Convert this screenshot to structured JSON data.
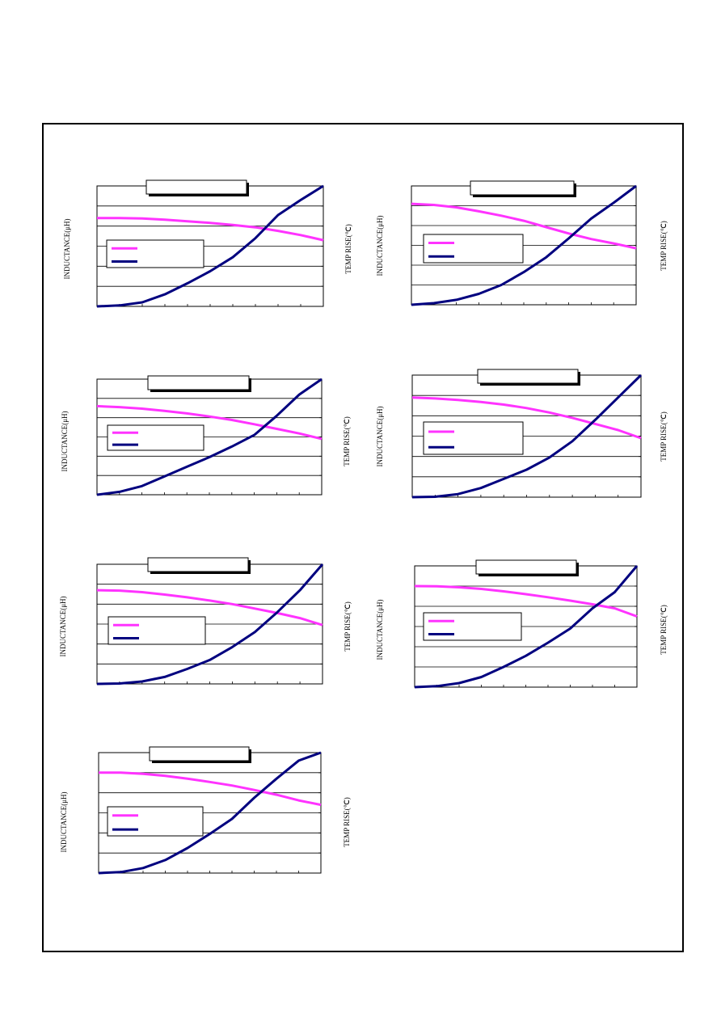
{
  "page": {
    "background": "#ffffff",
    "border_color": "#000000"
  },
  "colors": {
    "inductance": "#ff33ff",
    "temp_rise": "#00007f",
    "grid": "#000000"
  },
  "labels": {
    "left_axis": "INDUCTANCE(μH)",
    "right_axis": "TEMP RISE(℃)"
  },
  "chart_data": [
    {
      "type": "line",
      "title": "",
      "xlabel": "",
      "ylabel": "INDUCTANCE(μH)",
      "y2label": "TEMP RISE(℃)",
      "grid": true,
      "legend": "left-middle",
      "ylim": [
        0,
        6
      ],
      "xlim": [
        0,
        10
      ],
      "series": [
        {
          "x": [
            0,
            1,
            2,
            3,
            4,
            5,
            6,
            7,
            8,
            9,
            10
          ],
          "values": [
            4.4,
            4.4,
            4.38,
            4.32,
            4.24,
            4.16,
            4.06,
            3.94,
            3.76,
            3.55,
            3.3
          ]
        },
        {
          "x": [
            0,
            1,
            2,
            3,
            4,
            5,
            6,
            7,
            8,
            9,
            10
          ],
          "values": [
            0,
            0.05,
            0.2,
            0.6,
            1.15,
            1.75,
            2.45,
            3.4,
            4.55,
            5.3,
            6
          ]
        }
      ]
    },
    {
      "type": "line",
      "title": "",
      "xlabel": "",
      "ylabel": "INDUCTANCE(μH)",
      "y2label": "TEMP RISE(℃)",
      "grid": true,
      "legend": "left-middle",
      "ylim": [
        0,
        6
      ],
      "xlim": [
        0,
        10
      ],
      "series": [
        {
          "x": [
            0,
            1,
            2,
            3,
            4,
            5,
            6,
            7,
            8,
            9,
            10
          ],
          "values": [
            5.1,
            5.04,
            4.92,
            4.72,
            4.5,
            4.24,
            3.92,
            3.6,
            3.32,
            3.1,
            2.85
          ]
        },
        {
          "x": [
            0,
            1,
            2,
            3,
            4,
            5,
            6,
            7,
            8,
            9,
            10
          ],
          "values": [
            0,
            0.08,
            0.25,
            0.55,
            1.0,
            1.65,
            2.4,
            3.35,
            4.35,
            5.15,
            6
          ]
        }
      ]
    },
    {
      "type": "line",
      "title": "",
      "xlabel": "",
      "ylabel": "INDUCTANCE(μH)",
      "y2label": "TEMP RISE(℃)",
      "grid": true,
      "legend": "left-middle",
      "ylim": [
        0,
        6
      ],
      "xlim": [
        0,
        10
      ],
      "series": [
        {
          "x": [
            0,
            1,
            2,
            3,
            4,
            5,
            6,
            7,
            8,
            9,
            10
          ],
          "values": [
            4.6,
            4.55,
            4.47,
            4.35,
            4.22,
            4.06,
            3.88,
            3.66,
            3.42,
            3.18,
            2.9
          ]
        },
        {
          "x": [
            0,
            1,
            2,
            3,
            4,
            5,
            6,
            7,
            8,
            9,
            10
          ],
          "values": [
            0,
            0.15,
            0.45,
            0.95,
            1.45,
            1.95,
            2.5,
            3.1,
            4.1,
            5.2,
            6
          ]
        }
      ]
    },
    {
      "type": "line",
      "title": "",
      "xlabel": "",
      "ylabel": "INDUCTANCE(μH)",
      "y2label": "TEMP RISE(℃)",
      "grid": true,
      "legend": "left-middle",
      "ylim": [
        0,
        6
      ],
      "xlim": [
        0,
        10
      ],
      "series": [
        {
          "x": [
            0,
            1,
            2,
            3,
            4,
            5,
            6,
            7,
            8,
            9,
            10
          ],
          "values": [
            4.9,
            4.85,
            4.78,
            4.68,
            4.55,
            4.38,
            4.16,
            3.9,
            3.6,
            3.3,
            2.9
          ]
        },
        {
          "x": [
            0,
            1,
            2,
            3,
            4,
            5,
            6,
            7,
            8,
            9,
            10
          ],
          "values": [
            0,
            0.02,
            0.15,
            0.45,
            0.9,
            1.35,
            1.95,
            2.75,
            3.8,
            4.9,
            6
          ]
        }
      ]
    },
    {
      "type": "line",
      "title": "",
      "xlabel": "",
      "ylabel": "INDUCTANCE(μH)",
      "y2label": "TEMP RISE(℃)",
      "grid": true,
      "legend": "left-middle",
      "ylim": [
        0,
        6
      ],
      "xlim": [
        0,
        10
      ],
      "series": [
        {
          "x": [
            0,
            1,
            2,
            3,
            4,
            5,
            6,
            7,
            8,
            9,
            10
          ],
          "values": [
            4.7,
            4.68,
            4.6,
            4.48,
            4.34,
            4.18,
            4.0,
            3.78,
            3.55,
            3.3,
            2.95
          ]
        },
        {
          "x": [
            0,
            1,
            2,
            3,
            4,
            5,
            6,
            7,
            8,
            9,
            10
          ],
          "values": [
            0,
            0.02,
            0.12,
            0.35,
            0.75,
            1.2,
            1.85,
            2.6,
            3.6,
            4.7,
            6
          ]
        }
      ]
    },
    {
      "type": "line",
      "title": "",
      "xlabel": "",
      "ylabel": "INDUCTANCE(μH)",
      "y2label": "TEMP RISE(℃)",
      "grid": true,
      "legend": "left-middle",
      "ylim": [
        0,
        6
      ],
      "xlim": [
        0,
        10
      ],
      "series": [
        {
          "x": [
            0,
            1,
            2,
            3,
            4,
            5,
            6,
            7,
            8,
            9,
            10
          ],
          "values": [
            5.0,
            4.99,
            4.94,
            4.86,
            4.74,
            4.6,
            4.45,
            4.28,
            4.1,
            3.9,
            3.5
          ]
        },
        {
          "x": [
            0,
            1,
            2,
            3,
            4,
            5,
            6,
            7,
            8,
            9,
            10
          ],
          "values": [
            0,
            0.05,
            0.2,
            0.5,
            1.0,
            1.55,
            2.2,
            2.9,
            3.9,
            4.7,
            6
          ]
        }
      ]
    },
    {
      "type": "line",
      "title": "",
      "xlabel": "",
      "ylabel": "INDUCTANCE(μH)",
      "y2label": "TEMP RISE(℃)",
      "grid": true,
      "legend": "left-middle",
      "ylim": [
        0,
        6
      ],
      "xlim": [
        0,
        10
      ],
      "series": [
        {
          "x": [
            0,
            1,
            2,
            3,
            4,
            5,
            6,
            7,
            8,
            9,
            10
          ],
          "values": [
            5.0,
            5.0,
            4.94,
            4.84,
            4.7,
            4.54,
            4.36,
            4.14,
            3.9,
            3.62,
            3.4
          ]
        },
        {
          "x": [
            0,
            1,
            2,
            3,
            4,
            5,
            6,
            7,
            8,
            9,
            10
          ],
          "values": [
            0,
            0.05,
            0.25,
            0.65,
            1.25,
            1.95,
            2.7,
            3.75,
            4.7,
            5.6,
            6
          ]
        }
      ]
    }
  ]
}
